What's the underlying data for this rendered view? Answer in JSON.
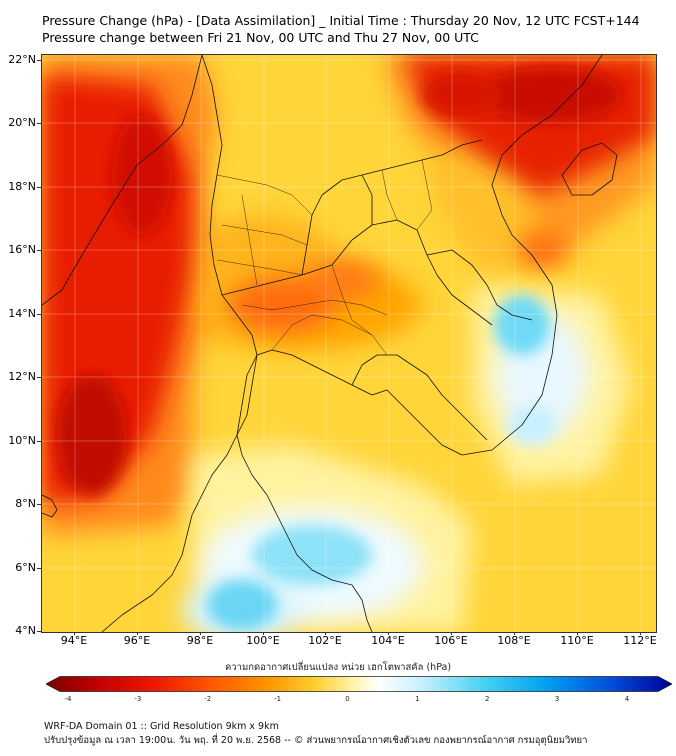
{
  "header": {
    "title_line1": "Pressure Change (hPa) - [Data Assimilation] _ Initial Time : Thursday 20 Nov, 12 UTC FCST+144",
    "title_line2": "Pressure change between Fri 21 Nov, 00 UTC and Thu 27 Nov, 00 UTC"
  },
  "map": {
    "latitude_labels": [
      "22°N",
      "20°N",
      "18°N",
      "16°N",
      "14°N",
      "12°N",
      "10°N",
      "8°N",
      "6°N",
      "4°N"
    ],
    "longitude_labels": [
      "94°E",
      "96°E",
      "98°E",
      "100°E",
      "102°E",
      "104°E",
      "106°E",
      "108°E",
      "110°E",
      "112°E"
    ],
    "background_color": "#ffd53a"
  },
  "colorbar": {
    "title": "ความกดอากาศเปลี่ยนแปลง หน่วย เฮกโตพาสคัล (hPa)",
    "tick_labels": [
      "-4",
      "-3",
      "-2",
      "-1",
      "0",
      "1",
      "2",
      "3",
      "4"
    ],
    "colors": [
      "#7a0000",
      "#c80000",
      "#f01e00",
      "#ff6400",
      "#ffa000",
      "#ffd23c",
      "#fff5b4",
      "#ffffff",
      "#c8f0ff",
      "#46d2f0",
      "#00a0f0",
      "#0050dc",
      "#000096"
    ]
  },
  "footer": {
    "line1": "WRF-DA Domain 01 :: Grid Resolution 9km x 9km",
    "line2": "ปรับปรุงข้อมูล ณ เวลา 19:00น. วัน พฤ. ที่ 20 พ.ย. 2568 -- © ส่วนพยากรณ์อากาศเชิงตัวเลข กองพยากรณ์อากาศ กรมอุตุนิยมวิทยา"
  }
}
